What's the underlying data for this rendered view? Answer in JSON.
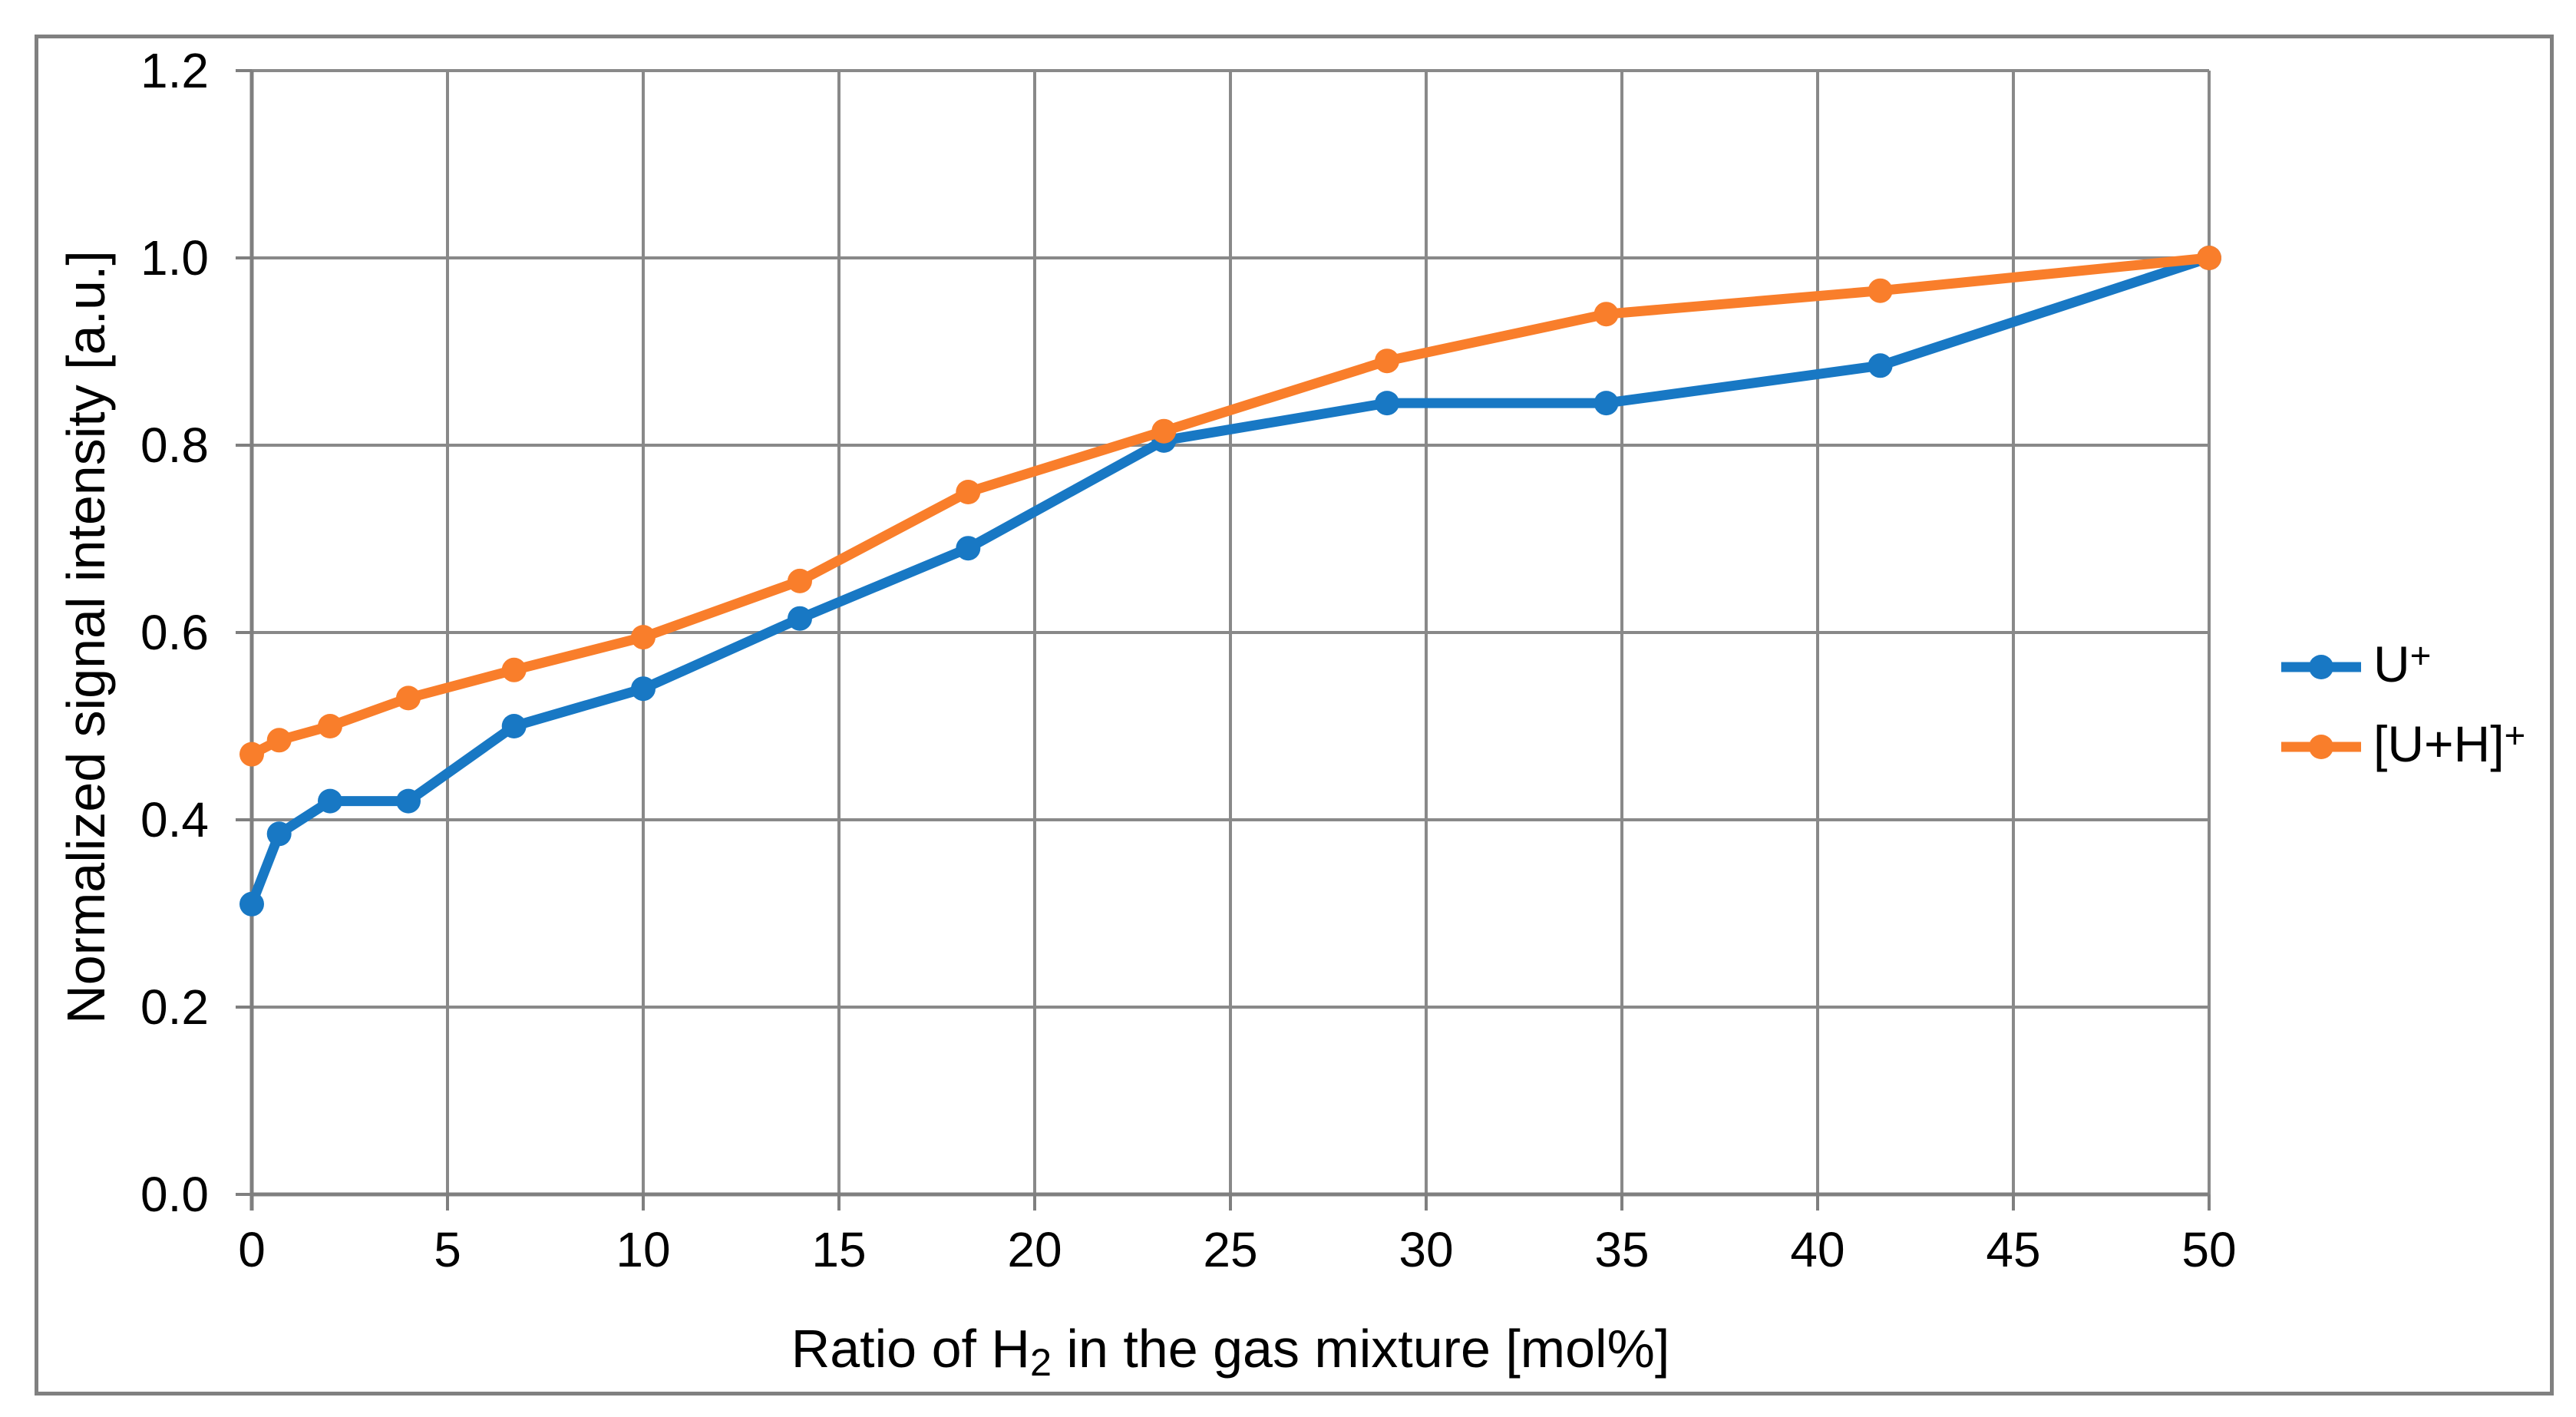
{
  "chart": {
    "y_axis": {
      "title": "Normalized signal intensity [a.u.]",
      "tick_labels": [
        "0.0",
        "0.2",
        "0.4",
        "0.6",
        "0.8",
        "1.0",
        "1.2"
      ]
    },
    "x_axis": {
      "title_prefix": "Ratio of H",
      "title_sub": "2",
      "title_suffix": " in the gas mixture [mol%]",
      "tick_labels": [
        "0",
        "5",
        "10",
        "15",
        "20",
        "25",
        "30",
        "35",
        "40",
        "45",
        "50"
      ]
    },
    "legend": [
      {
        "main": "U",
        "sup": "+",
        "color": "#1878C4"
      },
      {
        "main": "[U+H]",
        "sup": "+",
        "color": "#F97E2B"
      }
    ]
  },
  "chart_data": {
    "type": "line",
    "title": "",
    "xlabel": "Ratio of H2 in the gas mixture [mol%]",
    "ylabel": "Normalized signal intensity [a.u.]",
    "xlim": [
      0,
      50
    ],
    "ylim": [
      0,
      1.2
    ],
    "x_tick_step": 5,
    "y_tick_step": 0.2,
    "grid": true,
    "legend_position": "right",
    "x": [
      0,
      0.7,
      2,
      4,
      6.7,
      10,
      14,
      18.3,
      23.3,
      29,
      34.6,
      41.6,
      50
    ],
    "series": [
      {
        "name": "U+",
        "color": "#1878C4",
        "values": [
          0.31,
          0.385,
          0.42,
          0.42,
          0.5,
          0.54,
          0.615,
          0.69,
          0.805,
          0.845,
          0.845,
          0.885,
          1.0
        ]
      },
      {
        "name": "[U+H]+",
        "color": "#F97E2B",
        "values": [
          0.47,
          0.485,
          0.5,
          0.53,
          0.56,
          0.595,
          0.655,
          0.75,
          0.815,
          0.89,
          0.94,
          0.965,
          1.0
        ]
      }
    ],
    "style": {
      "gridline_color": "#898989",
      "axis_color": "#7F7F7F",
      "frame_color": "#808080",
      "line_width": 13,
      "marker_radius": 16
    }
  }
}
